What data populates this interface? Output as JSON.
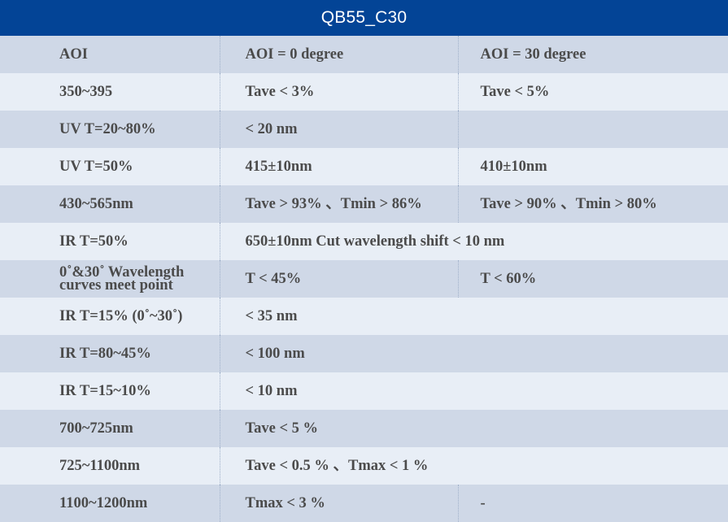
{
  "title": "QB55_C30",
  "columns": [
    "AOI",
    "AOI = 0 degree",
    "AOI = 30 degree"
  ],
  "rows": [
    {
      "label": "350~395",
      "aoi0": "Tave < 3%",
      "aoi30": "Tave < 5%"
    },
    {
      "label": "UV T=20~80%",
      "aoi0": "< 20 nm",
      "aoi30": ""
    },
    {
      "label": "UV T=50%",
      "aoi0": "415±10nm",
      "aoi30": "410±10nm"
    },
    {
      "label": "430~565nm",
      "aoi0": "Tave > 93% 、Tmin > 86%",
      "aoi30": "Tave > 90% 、Tmin > 80%"
    },
    {
      "label": "IR T=50%",
      "merged": "650±10nm Cut wavelength shift < 10 nm"
    },
    {
      "label": "0˚&30˚ Wavelength curves meet point",
      "aoi0": "T < 45%",
      "aoi30": "T < 60%"
    },
    {
      "label": "IR T=15% (0˚~30˚)",
      "merged": "< 35 nm"
    },
    {
      "label": "IR T=80~45%",
      "merged": "< 100 nm"
    },
    {
      "label": "IR T=15~10%",
      "merged": "< 10 nm"
    },
    {
      "label": "700~725nm",
      "merged": "Tave < 5 %"
    },
    {
      "label": "725~1100nm",
      "merged": "Tave < 0.5 % 、Tmax < 1 %"
    },
    {
      "label": "1100~1200nm",
      "aoi0": "Tmax < 3 %",
      "aoi30": "-"
    }
  ]
}
